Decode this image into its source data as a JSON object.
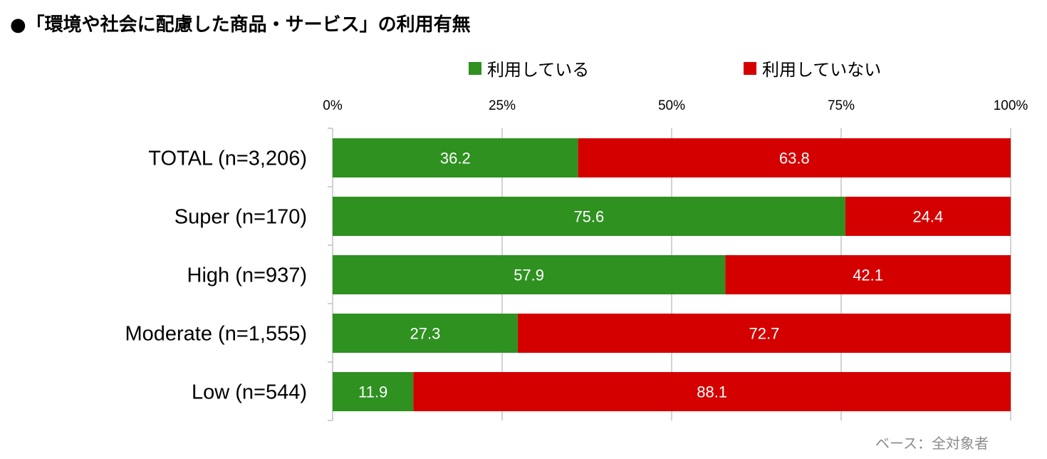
{
  "title": "●「環境や社会に配慮した商品・サービス」の利用有無",
  "base_note": "ベース：全対象者",
  "legend": [
    {
      "label": "利用している",
      "color": "#2e9120"
    },
    {
      "label": "利用していない",
      "color": "#d40000"
    }
  ],
  "chart_data": {
    "type": "bar",
    "orientation": "horizontal",
    "stacked": true,
    "categories": [
      "TOTAL (n=3,206)",
      "Super (n=170)",
      "High (n=937)",
      "Moderate (n=1,555)",
      "Low (n=544)"
    ],
    "series": [
      {
        "name": "利用している",
        "values": [
          36.2,
          75.6,
          57.9,
          27.3,
          11.9
        ],
        "color": "#2e9120"
      },
      {
        "name": "利用していない",
        "values": [
          63.8,
          24.4,
          42.1,
          72.7,
          88.1
        ],
        "color": "#d40000"
      }
    ],
    "xlim": [
      0,
      100
    ],
    "x_ticks": [
      "0%",
      "25%",
      "50%",
      "75%",
      "100%"
    ],
    "x_axis_position": "top",
    "grid": true,
    "legend_position": "top"
  }
}
